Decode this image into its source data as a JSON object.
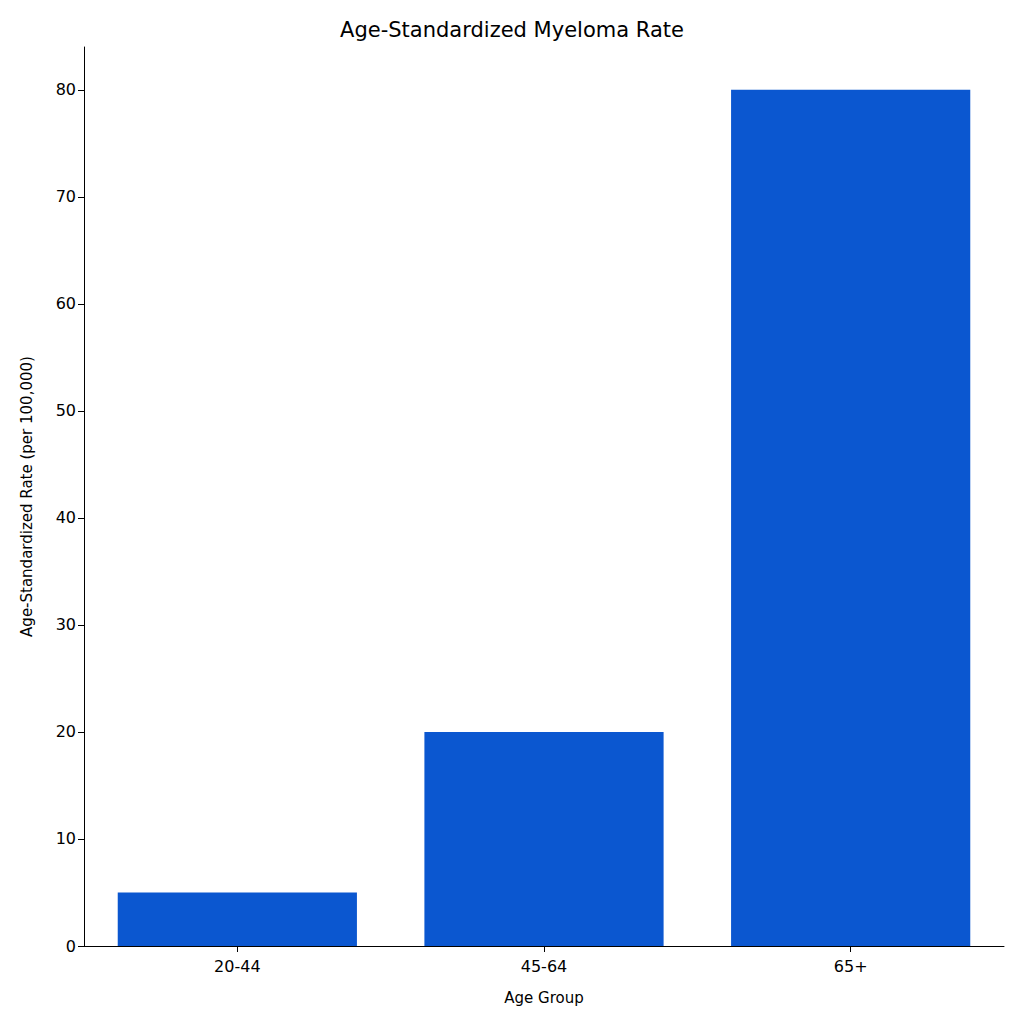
{
  "chart_data": {
    "type": "bar",
    "title": "Age-Standardized Myeloma Rate",
    "x_label": "Age Group",
    "y_label": "Age-Standardized Rate (per 100,000)",
    "categories": [
      "20-44",
      "45-64",
      "65+"
    ],
    "values": [
      5,
      20,
      80
    ],
    "color": "#0b57d0",
    "ylim": [
      0,
      84
    ],
    "yticks": [
      0,
      10,
      20,
      30,
      40,
      50,
      60,
      70,
      80
    ],
    "grid": false
  }
}
